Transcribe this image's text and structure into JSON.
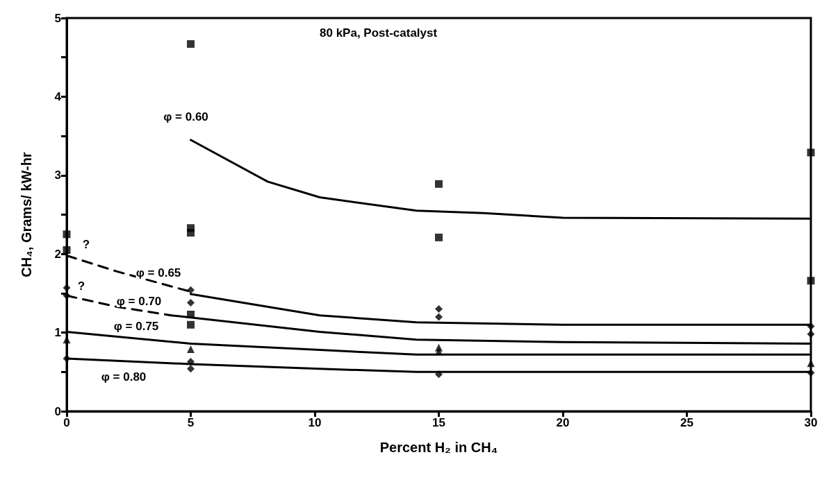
{
  "chart_data": {
    "type": "scatter",
    "title": "80 kPa, Post-catalyst",
    "xlabel": "Percent H₂ in CH₄",
    "ylabel": "CH₄, Grams/ kW-hr",
    "xlim": [
      0,
      30
    ],
    "xticks": [
      0,
      5,
      10,
      15,
      20,
      25,
      30
    ],
    "ylim": [
      0,
      5
    ],
    "yticks": [
      0,
      {
        "value": 0.5,
        "label": null
      },
      1,
      {
        "value": 1.5,
        "label": null
      },
      2,
      {
        "value": 2.5,
        "label": null
      },
      3,
      {
        "value": 3.5,
        "label": null
      },
      4,
      {
        "value": 4.5,
        "label": null
      },
      5
    ],
    "grid": false,
    "series": [
      {
        "marker": "square",
        "color": "#000000",
        "x": [
          5,
          5,
          5,
          15,
          15,
          30,
          30
        ],
        "values": [
          4.67,
          2.33,
          2.27,
          2.89,
          2.21,
          3.29,
          1.66
        ]
      },
      {
        "marker": "square",
        "color": "#000000",
        "x": [
          0,
          0,
          5,
          5
        ],
        "values": [
          2.25,
          2.05,
          1.23,
          1.1
        ]
      },
      {
        "marker": "diamond",
        "color": "#000000",
        "x": [
          0,
          0,
          5,
          5,
          15,
          15,
          30,
          30
        ],
        "values": [
          1.57,
          1.47,
          1.54,
          1.38,
          1.3,
          1.2,
          1.08,
          0.98
        ]
      },
      {
        "marker": "triangle",
        "color": "#000000",
        "x": [
          0,
          5,
          15,
          15,
          30
        ],
        "values": [
          0.91,
          0.79,
          0.81,
          0.76,
          0.61
        ]
      },
      {
        "marker": "diamond",
        "color": "#000000",
        "x": [
          0,
          5,
          5,
          15,
          30
        ],
        "values": [
          0.67,
          0.63,
          0.54,
          0.47,
          0.49
        ]
      },
      {
        "type": "line",
        "name": "φ = 0.60",
        "marker": "none",
        "line_style": "solid",
        "color": "#000000",
        "x": [
          5,
          8.1,
          10.2,
          14.1,
          16.8,
          20,
          30
        ],
        "values": [
          3.45,
          2.92,
          2.72,
          2.55,
          2.52,
          2.46,
          2.45
        ]
      },
      {
        "type": "line",
        "name": "φ = 0.65",
        "marker": "none",
        "line_style": "dashed",
        "color": "#000000",
        "x": [
          0,
          2,
          5
        ],
        "values": [
          1.98,
          1.78,
          1.52
        ]
      },
      {
        "type": "line",
        "marker": "none",
        "line_style": "solid",
        "color": "#000000",
        "x": [
          5,
          10.2,
          14.1,
          20,
          30
        ],
        "values": [
          1.49,
          1.22,
          1.13,
          1.1,
          1.1
        ]
      },
      {
        "type": "line",
        "name": "φ = 0.70",
        "marker": "none",
        "line_style": "dashed",
        "color": "#000000",
        "x": [
          0,
          2,
          4.2
        ],
        "values": [
          1.47,
          1.33,
          1.22
        ]
      },
      {
        "type": "line",
        "marker": "none",
        "line_style": "solid",
        "color": "#000000",
        "x": [
          4.2,
          10.2,
          14.1,
          20,
          30
        ],
        "values": [
          1.22,
          1.01,
          0.91,
          0.88,
          0.86
        ]
      },
      {
        "type": "line",
        "name": "φ = 0.75",
        "marker": "none",
        "line_style": "solid",
        "color": "#000000",
        "x": [
          0,
          5,
          10.2,
          14.1,
          20,
          30
        ],
        "values": [
          1.01,
          0.86,
          0.78,
          0.72,
          0.72,
          0.72
        ]
      },
      {
        "type": "line",
        "name": "φ = 0.80",
        "marker": "none",
        "line_style": "solid",
        "color": "#000000",
        "x": [
          0,
          5,
          10.2,
          14.1,
          20,
          30
        ],
        "values": [
          0.67,
          0.6,
          0.54,
          0.5,
          0.5,
          0.5
        ]
      }
    ],
    "annotations": [
      "?",
      "?"
    ]
  }
}
